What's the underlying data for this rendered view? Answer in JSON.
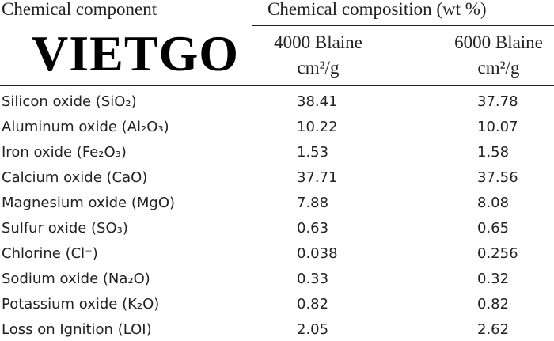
{
  "logo": "VIETGO",
  "table": {
    "header": {
      "component": "Chemical component",
      "composition": "Chemical composition (wt %)",
      "columns": [
        {
          "name": "4000 Blaine",
          "unit": "cm²/g"
        },
        {
          "name": "6000 Blaine",
          "unit": "cm²/g"
        }
      ]
    },
    "rows": [
      [
        "Silicon oxide (SiO₂)",
        "38.41",
        "37.78"
      ],
      [
        "Aluminum oxide (Al₂O₃)",
        "10.22",
        "10.07"
      ],
      [
        "Iron oxide (Fe₂O₃)",
        "1.53",
        "1.58"
      ],
      [
        "Calcium oxide (CaO)",
        "37.71",
        "37.56"
      ],
      [
        "Magnesium oxide (MgO)",
        "7.88",
        "8.08"
      ],
      [
        "Sulfur oxide (SO₃)",
        "0.63",
        "0.65"
      ],
      [
        "Chlorine (Cl⁻)",
        "0.038",
        "0.256"
      ],
      [
        "Sodium oxide (Na₂O)",
        "0.33",
        "0.32"
      ],
      [
        "Potassium oxide (K₂O)",
        "0.82",
        "0.82"
      ],
      [
        "Loss on Ignition (LOI)",
        "2.05",
        "2.62"
      ]
    ]
  }
}
